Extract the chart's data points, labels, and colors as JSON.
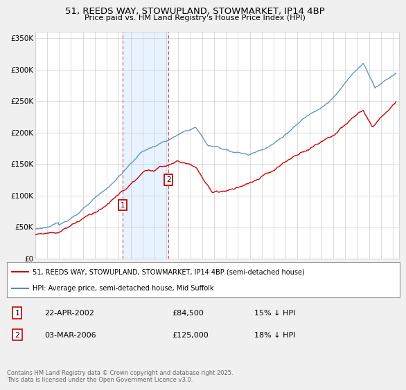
{
  "title": "51, REEDS WAY, STOWUPLAND, STOWMARKET, IP14 4BP",
  "subtitle": "Price paid vs. HM Land Registry's House Price Index (HPI)",
  "xlim_start": 1995.0,
  "xlim_end": 2025.5,
  "ylim": [
    0,
    360000
  ],
  "yticks": [
    0,
    50000,
    100000,
    150000,
    200000,
    250000,
    300000,
    350000
  ],
  "ytick_labels": [
    "£0",
    "£50K",
    "£100K",
    "£150K",
    "£200K",
    "£250K",
    "£300K",
    "£350K"
  ],
  "xticks": [
    1995,
    1996,
    1997,
    1998,
    1999,
    2000,
    2001,
    2002,
    2003,
    2004,
    2005,
    2006,
    2007,
    2008,
    2009,
    2010,
    2011,
    2012,
    2013,
    2014,
    2015,
    2016,
    2017,
    2018,
    2019,
    2020,
    2021,
    2022,
    2023,
    2024,
    2025
  ],
  "sale1_x": 2002.31,
  "sale1_y": 84500,
  "sale1_label": "1",
  "sale2_x": 2006.17,
  "sale2_y": 125000,
  "sale2_label": "2",
  "shade_color": "#ddeeff",
  "shade_alpha": 0.7,
  "vline_color": "#dd4444",
  "vline_style": "--",
  "red_line_color": "#cc0000",
  "blue_line_color": "#5588bb",
  "legend_line1": "51, REEDS WAY, STOWUPLAND, STOWMARKET, IP14 4BP (semi-detached house)",
  "legend_line2": "HPI: Average price, semi-detached house, Mid Suffolk",
  "table_row1_num": "1",
  "table_row1_date": "22-APR-2002",
  "table_row1_price": "£84,500",
  "table_row1_hpi": "15% ↓ HPI",
  "table_row2_num": "2",
  "table_row2_date": "03-MAR-2006",
  "table_row2_price": "£125,000",
  "table_row2_hpi": "18% ↓ HPI",
  "footnote": "Contains HM Land Registry data © Crown copyright and database right 2025.\nThis data is licensed under the Open Government Licence v3.0.",
  "bg_color": "#f0f0f0",
  "plot_bg_color": "#ffffff"
}
